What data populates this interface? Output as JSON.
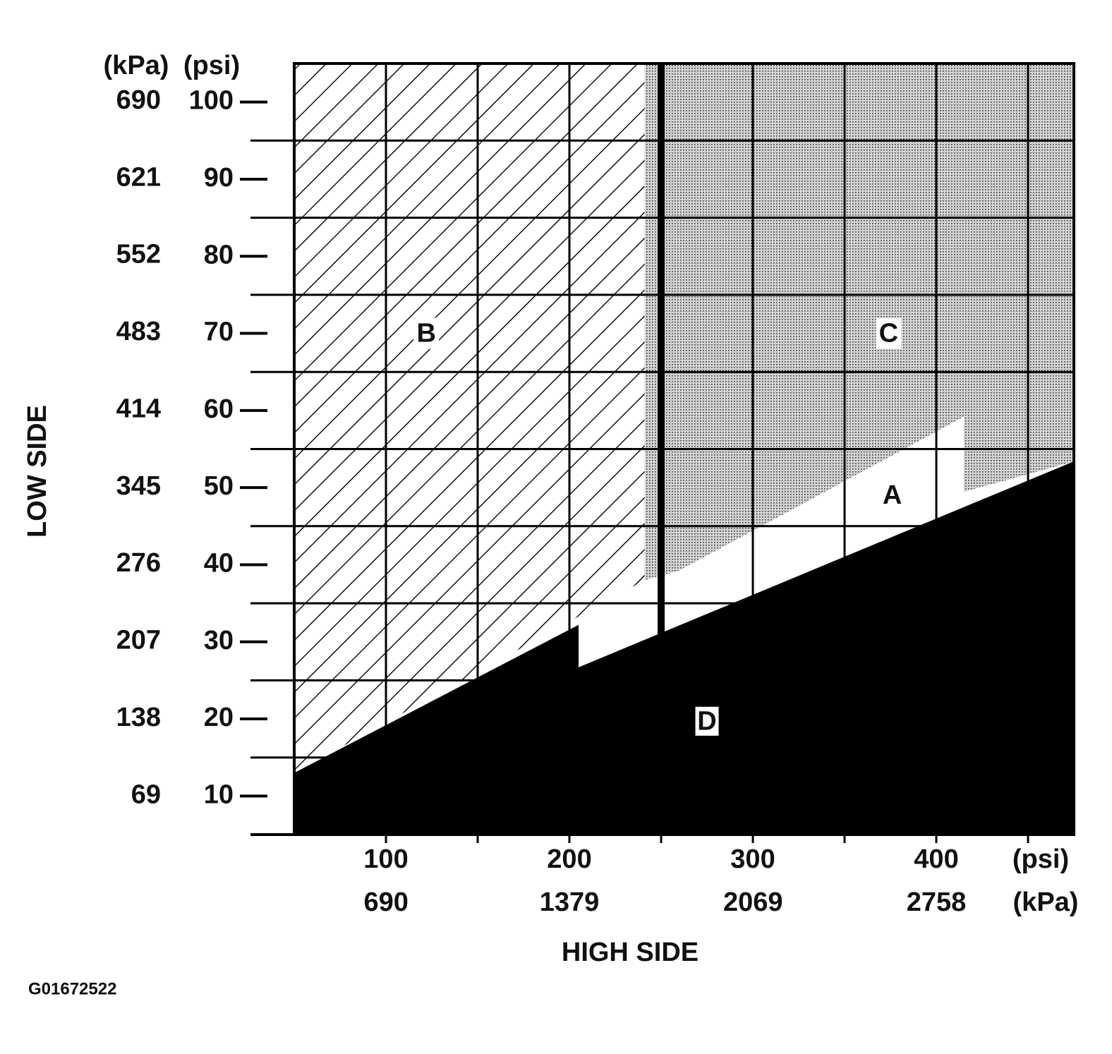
{
  "chart_data": {
    "type": "region",
    "ylabel": "LOW SIDE",
    "xlabel": "HIGH SIDE",
    "figure_id": "G01672522",
    "y_unit": "(psi)",
    "y2_unit": "(kPa)",
    "x_unit": "(psi)",
    "x2_unit": "(kPa)",
    "xlim": [
      50,
      475
    ],
    "ylim": [
      5,
      105
    ],
    "x2lim": [
      344.75,
      3275
    ],
    "y2lim": [
      34.5,
      724
    ],
    "xticks": [
      100,
      200,
      300,
      400
    ],
    "xminorticks": [
      150,
      250,
      350,
      450
    ],
    "x2ticks": [
      690,
      1379,
      2069,
      2758
    ],
    "yticks": [
      10,
      20,
      30,
      40,
      50,
      60,
      70,
      80,
      90,
      100
    ],
    "y2ticks": [
      69,
      138,
      207,
      276,
      345,
      414,
      483,
      552,
      621,
      690
    ],
    "xgrid": [
      100,
      150,
      200,
      300,
      350,
      400,
      450
    ],
    "xgrid_bold": [
      250
    ],
    "ygrid": [
      15,
      25,
      35,
      45,
      55,
      65,
      75,
      85,
      95
    ],
    "regions": [
      {
        "name": "B",
        "fill": "hatch",
        "points": [
          [
            50,
            105
          ],
          [
            241,
            105
          ],
          [
            241,
            38
          ],
          [
            50,
            13
          ]
        ],
        "label_at": [
          122,
          70
        ]
      },
      {
        "name": "C",
        "fill": "dots",
        "points": [
          [
            241,
            105
          ],
          [
            475,
            105
          ],
          [
            475,
            53.4
          ],
          [
            241,
            38
          ]
        ],
        "label_at": [
          374,
          70
        ]
      },
      {
        "name": "A",
        "fill": "white",
        "points": [
          [
            205,
            32.2
          ],
          [
            415,
            59.2
          ],
          [
            415,
            47.7
          ],
          [
            205,
            26.7
          ]
        ],
        "label_at": [
          376,
          49
        ]
      },
      {
        "name": "D",
        "fill": "black",
        "points": [
          [
            50,
            13
          ],
          [
            205,
            32.2
          ],
          [
            205,
            26.7
          ],
          [
            475,
            53.4
          ],
          [
            475,
            5
          ],
          [
            50,
            5
          ]
        ],
        "label_at": [
          275,
          19.7
        ]
      }
    ]
  }
}
